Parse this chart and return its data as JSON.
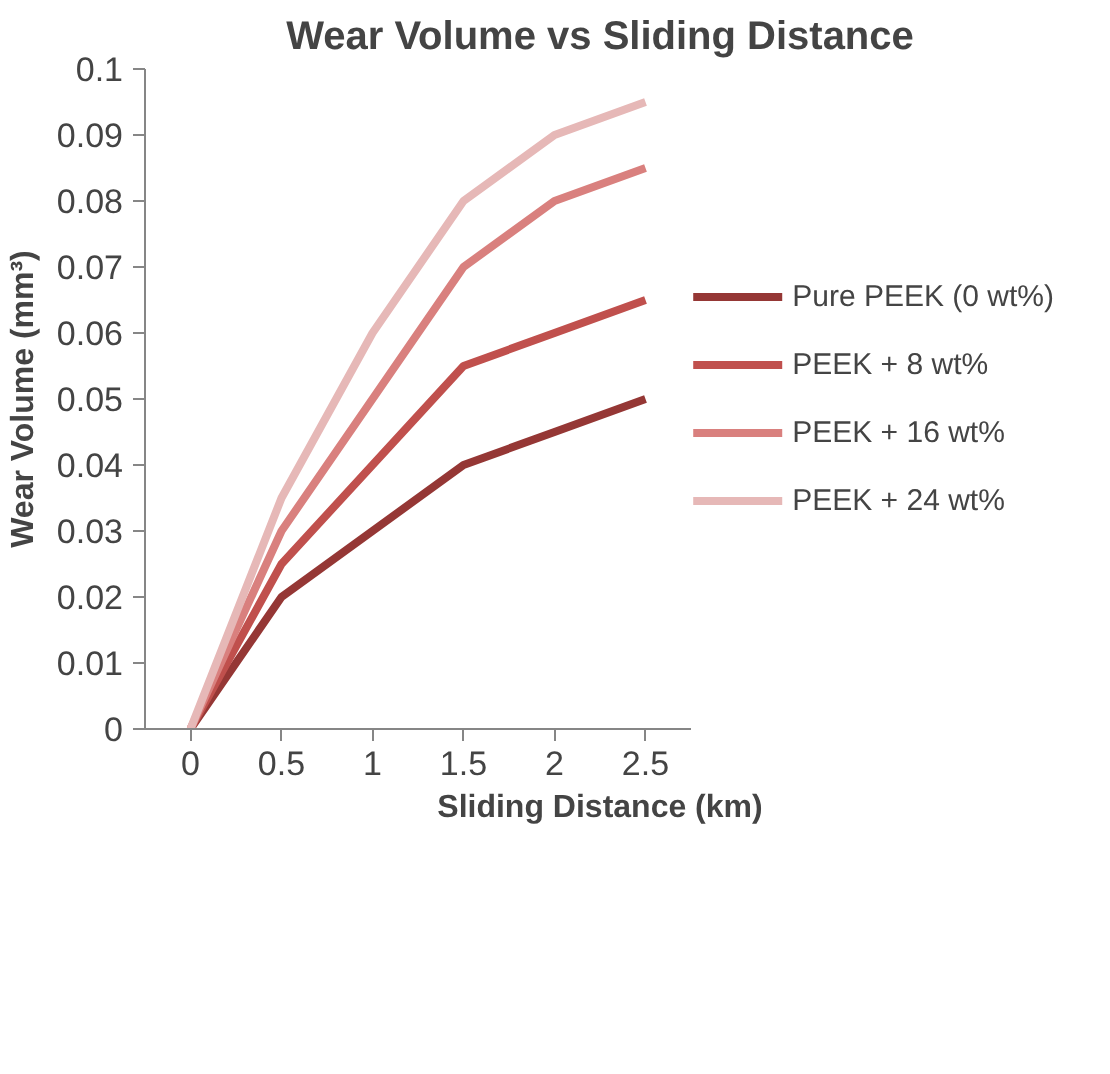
{
  "chart_data": {
    "type": "line",
    "title": "Wear Volume vs Sliding Distance",
    "xlabel": "Sliding Distance (km)",
    "ylabel": "Wear Volume (mm³)",
    "categories": [
      "0",
      "0.5",
      "1",
      "1.5",
      "2",
      "2.5"
    ],
    "series": [
      {
        "name": "Pure PEEK (0 wt%)",
        "color": "#953735",
        "values": [
          0,
          0.02,
          0.03,
          0.04,
          0.045,
          0.05
        ]
      },
      {
        "name": "PEEK + 8 wt%",
        "color": "#c0504d",
        "values": [
          0,
          0.025,
          0.04,
          0.055,
          0.06,
          0.065
        ]
      },
      {
        "name": "PEEK + 16 wt%",
        "color": "#d9807e",
        "values": [
          0,
          0.03,
          0.05,
          0.07,
          0.08,
          0.085
        ]
      },
      {
        "name": "PEEK + 24 wt%",
        "color": "#e6b8b7",
        "values": [
          0,
          0.035,
          0.06,
          0.08,
          0.09,
          0.095
        ]
      }
    ],
    "ylim": [
      0,
      0.1
    ],
    "yticks": [
      0,
      0.01,
      0.02,
      0.03,
      0.04,
      0.05,
      0.06,
      0.07,
      0.08,
      0.09,
      0.1
    ],
    "grid": false,
    "legend": "right",
    "marker": "none",
    "line_style": "solid"
  }
}
